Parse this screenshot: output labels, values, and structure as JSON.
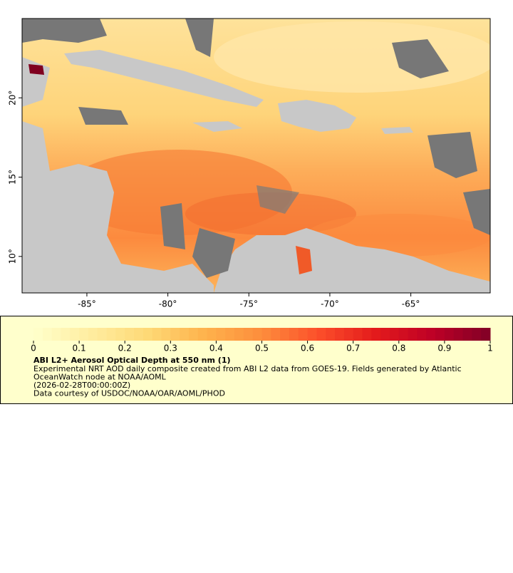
{
  "map": {
    "xlim": [
      -89,
      -60.1
    ],
    "ylim": [
      7.7,
      25
    ],
    "xticks": [
      {
        "value": -85,
        "label": "-85°"
      },
      {
        "value": -80,
        "label": "-80°"
      },
      {
        "value": -75,
        "label": "-75°"
      },
      {
        "value": -70,
        "label": "-70°"
      },
      {
        "value": -65,
        "label": "-65°"
      }
    ],
    "yticks": [
      {
        "value": 10,
        "label": "10°"
      },
      {
        "value": 15,
        "label": "15°"
      },
      {
        "value": 20,
        "label": "20°"
      }
    ]
  },
  "colorbar": {
    "lim": [
      0,
      1
    ],
    "ticks": [
      0,
      0.1,
      0.2,
      0.3,
      0.4,
      0.5,
      0.6,
      0.7,
      0.8,
      0.9,
      1
    ],
    "colors": [
      "#ffffcc",
      "#ffeda0",
      "#fed976",
      "#feb24c",
      "#fd8d3c",
      "#fc4e2a",
      "#e31a1c",
      "#bd0026",
      "#800026"
    ]
  },
  "legend": {
    "title": "ABI L2+ Aerosol Optical Depth at 550 nm (1)",
    "lines": [
      "Experimental NRT AOD daily composite created from ABI L2 data from GOES-19. Fields generated by Atlantic",
      "OceanWatch node at NOAA/AOML",
      "(2026-02-28T00:00:00Z)",
      "Data courtesy of USDOC/NOAA/OAR/AOML/PHOD"
    ]
  }
}
